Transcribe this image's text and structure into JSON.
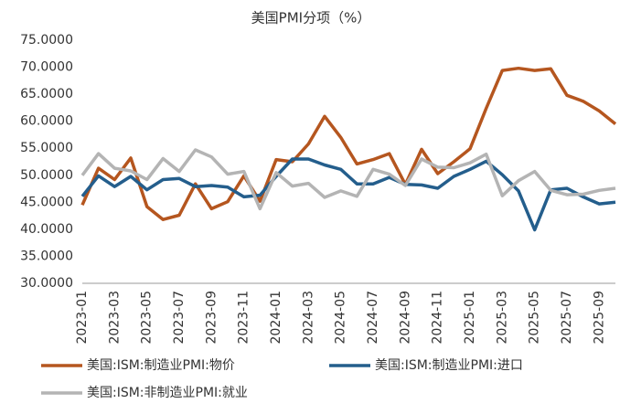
{
  "chart_data": {
    "type": "line",
    "title": "美国PMI分项（%）",
    "categories": [
      "2023-01",
      null,
      "2023-03",
      null,
      "2023-05",
      null,
      "2023-07",
      null,
      "2023-09",
      null,
      "2023-11",
      null,
      "2024-01",
      null,
      "2024-03",
      null,
      "2024-05",
      null,
      "2024-07",
      null,
      "2024-09",
      null,
      "2024-11",
      null,
      "2025-01",
      null,
      "2025-03",
      null,
      "2025-05",
      null,
      "2025-07",
      null,
      "2025-09",
      null
    ],
    "series": [
      {
        "name": "美国:ISM:制造业PMI:物价",
        "color": "#b5561f",
        "values": [
          44.5,
          51.3,
          49.2,
          53.2,
          44.2,
          41.8,
          42.6,
          48.4,
          43.8,
          45.1,
          49.9,
          45.2,
          52.9,
          52.5,
          55.8,
          60.9,
          57.0,
          52.1,
          52.9,
          54.0,
          48.3,
          54.8,
          50.3,
          52.5,
          54.9,
          62.4,
          69.4,
          69.8,
          69.4,
          69.7,
          64.8,
          63.7,
          61.9,
          59.5
        ]
      },
      {
        "name": "美国:ISM:制造业PMI:进口",
        "color": "#245e8c",
        "values": [
          46.1,
          49.9,
          47.9,
          49.8,
          47.3,
          49.2,
          49.4,
          47.9,
          48.1,
          47.8,
          46.0,
          46.3,
          49.8,
          53.0,
          53.0,
          51.9,
          51.1,
          48.4,
          48.4,
          49.6,
          48.3,
          48.2,
          47.6,
          49.8,
          51.1,
          52.6,
          50.1,
          47.1,
          39.9,
          47.3,
          47.6,
          46.0,
          44.7,
          45.0
        ]
      },
      {
        "name": "美国:ISM:非制造业PMI:就业",
        "color": "#b4b4b4",
        "values": [
          50.0,
          54.0,
          51.3,
          50.8,
          49.2,
          53.1,
          50.7,
          54.7,
          53.4,
          50.2,
          50.7,
          43.8,
          50.5,
          48.0,
          48.5,
          45.9,
          47.1,
          46.1,
          51.1,
          50.2,
          48.1,
          53.0,
          51.5,
          51.4,
          52.3,
          53.9,
          46.2,
          49.0,
          50.7,
          47.2,
          46.4,
          46.5,
          47.2,
          47.6
        ]
      }
    ],
    "ylim": [
      30,
      75
    ],
    "yticks": [
      {
        "value": 30,
        "label": "30.0000"
      },
      {
        "value": 35,
        "label": "35.0000"
      },
      {
        "value": 40,
        "label": "40.0000"
      },
      {
        "value": 45,
        "label": "45.0000"
      },
      {
        "value": 50,
        "label": "50.0000"
      },
      {
        "value": 55,
        "label": "55.0000"
      },
      {
        "value": 60,
        "label": "60.0000"
      },
      {
        "value": 65,
        "label": "65.0000"
      },
      {
        "value": 70,
        "label": "70.0000"
      },
      {
        "value": 75,
        "label": "75.0000"
      }
    ],
    "grid": false
  }
}
